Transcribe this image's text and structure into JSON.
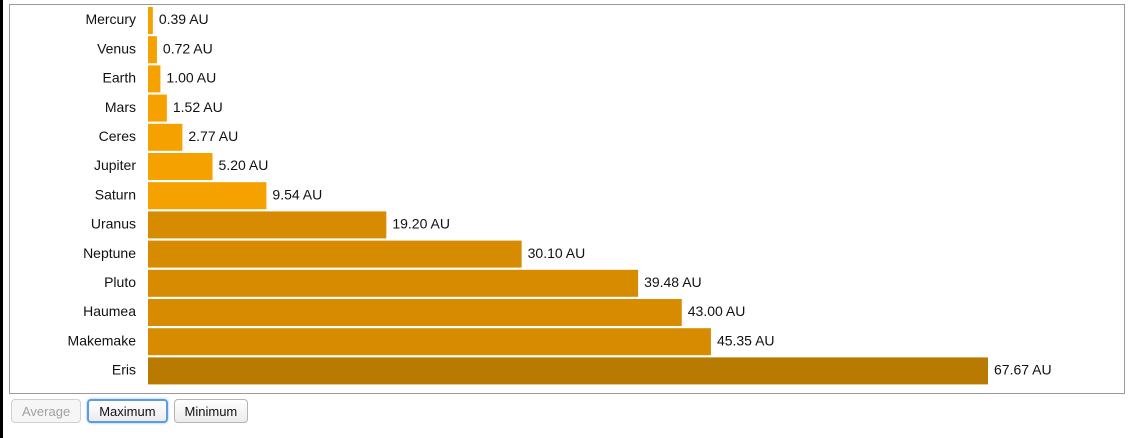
{
  "chart_data": {
    "type": "bar",
    "orientation": "horizontal",
    "title": "",
    "xlabel": "",
    "ylabel": "",
    "categories": [
      "Mercury",
      "Venus",
      "Earth",
      "Mars",
      "Ceres",
      "Jupiter",
      "Saturn",
      "Uranus",
      "Neptune",
      "Pluto",
      "Haumea",
      "Makemake",
      "Eris"
    ],
    "values": [
      0.39,
      0.72,
      1.0,
      1.52,
      2.77,
      5.2,
      9.54,
      19.2,
      30.1,
      39.48,
      43.0,
      45.35,
      67.67
    ],
    "value_labels": [
      "0.39 AU",
      "0.72 AU",
      "1.00 AU",
      "1.52 AU",
      "2.77 AU",
      "5.20 AU",
      "9.54 AU",
      "19.20 AU",
      "30.10 AU",
      "39.48 AU",
      "43.00 AU",
      "45.35 AU",
      "67.67 AU"
    ],
    "unit": "AU",
    "xlim": [
      0,
      67.67
    ],
    "grid": false,
    "legend": "none",
    "colors": {
      "light": "#f5a200",
      "medium": "#d68b00",
      "dark": "#b87a00"
    }
  },
  "controls": {
    "buttons": [
      {
        "label": "Average",
        "state": "disabled"
      },
      {
        "label": "Maximum",
        "state": "selected"
      },
      {
        "label": "Minimum",
        "state": "normal"
      }
    ]
  }
}
